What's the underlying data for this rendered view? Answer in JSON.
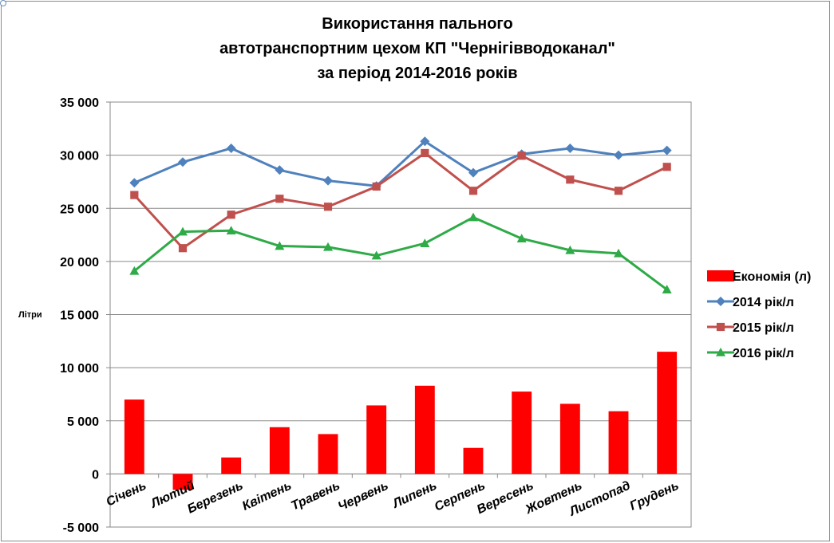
{
  "chart_data": {
    "type": "bar+line",
    "title": [
      "Використання  пального",
      "автотранспортним  цехом КП \"Чернігівводоканал\"",
      "за період  2014-2016 років"
    ],
    "ylabel": "Літри",
    "xlabel": "",
    "ylim": [
      -5000,
      35000
    ],
    "ytick_step": 5000,
    "ytick_labels": [
      "-5 000",
      "0",
      "5 000",
      "10 000",
      "15 000",
      "20 000",
      "25 000",
      "30 000",
      "35 000"
    ],
    "grid": true,
    "legend_position": "right",
    "categories": [
      "Січень",
      "Лютий",
      "Березень",
      "Квітень",
      "Травень",
      "Червень",
      "Липень",
      "Серпень",
      "Вересень",
      "Жовтень",
      "Листопад",
      "Грудень"
    ],
    "series": [
      {
        "name": "Економія (л)",
        "kind": "bar",
        "color": "#ff0000",
        "marker": "rect",
        "values": [
          7000,
          -1500,
          1550,
          4400,
          3750,
          6450,
          8300,
          2450,
          7750,
          6600,
          5900,
          11500
        ]
      },
      {
        "name": "2014 рік/л",
        "kind": "line",
        "color": "#4f81bd",
        "marker": "diamond",
        "values": [
          27400,
          29350,
          30650,
          28600,
          27600,
          27100,
          31300,
          28350,
          30100,
          30650,
          30000,
          30450
        ]
      },
      {
        "name": "2015 рік/л",
        "kind": "line",
        "color": "#c0504d",
        "marker": "square",
        "values": [
          26250,
          21250,
          24400,
          25900,
          25150,
          27050,
          30200,
          26650,
          29950,
          27700,
          26650,
          28900
        ]
      },
      {
        "name": "2016 рік/л",
        "kind": "line",
        "color": "#2eaa47",
        "marker": "triangle",
        "values": [
          19100,
          22800,
          22900,
          21450,
          21350,
          20550,
          21700,
          24150,
          22150,
          21050,
          20750,
          17350
        ]
      }
    ]
  }
}
